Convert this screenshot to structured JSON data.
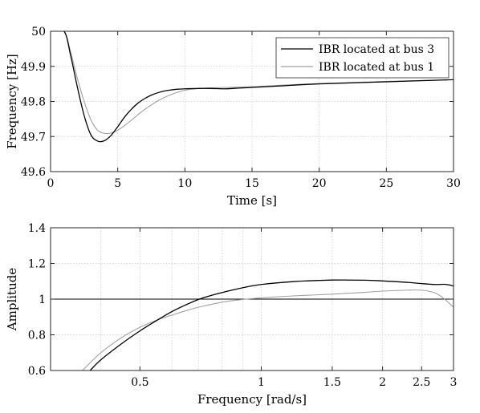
{
  "chart_data": [
    {
      "type": "line",
      "title": "",
      "xlabel": "Time [s]",
      "ylabel": "Frequency [Hz]",
      "xlim": [
        0,
        30
      ],
      "ylim": [
        49.6,
        50
      ],
      "xticks": [
        0,
        5,
        10,
        15,
        20,
        25,
        30
      ],
      "yticks": [
        49.6,
        49.7,
        49.8,
        49.9,
        50
      ],
      "xtick_labels": [
        "0",
        "5",
        "10",
        "15",
        "20",
        "25",
        "30"
      ],
      "ytick_labels": [
        "49.6",
        "49.7",
        "49.8",
        "49.9",
        "50"
      ],
      "grid": true,
      "legend_position": "top-right",
      "series": [
        {
          "name": "IBR located at bus 3",
          "color": "#000000",
          "x": [
            0,
            1.0,
            1.5,
            2.0,
            2.5,
            3.0,
            3.5,
            4.0,
            4.5,
            5.0,
            5.5,
            6.0,
            6.5,
            7.0,
            7.5,
            8.0,
            8.5,
            9.0,
            9.5,
            10.0,
            11,
            12,
            13,
            14,
            15,
            17,
            20,
            25,
            30
          ],
          "y": [
            50.0,
            50.0,
            49.93,
            49.84,
            49.76,
            49.705,
            49.687,
            49.688,
            49.703,
            49.728,
            49.755,
            49.777,
            49.795,
            49.808,
            49.818,
            49.825,
            49.83,
            49.833,
            49.835,
            49.836,
            49.837,
            49.837,
            49.836,
            49.838,
            49.84,
            49.844,
            49.85,
            49.856,
            49.862
          ]
        },
        {
          "name": "IBR located at bus 1",
          "color": "#a0a0a0",
          "x": [
            0,
            1.0,
            1.5,
            2.0,
            2.5,
            3.0,
            3.5,
            4.0,
            4.5,
            5.0,
            5.5,
            6.0,
            6.5,
            7.0,
            8.0,
            9.0,
            10.0,
            11,
            12,
            13,
            14,
            15,
            17,
            20,
            25,
            30
          ],
          "y": [
            50.0,
            50.0,
            49.94,
            49.865,
            49.8,
            49.748,
            49.718,
            49.709,
            49.71,
            49.718,
            49.731,
            49.746,
            49.762,
            49.777,
            49.802,
            49.82,
            49.832,
            49.837,
            49.839,
            49.84,
            49.841,
            49.842,
            49.846,
            49.851,
            49.857,
            49.862
          ]
        }
      ]
    },
    {
      "type": "line",
      "title": "",
      "xlabel": "Frequency [rad/s]",
      "ylabel": "Amplitude",
      "xscale": "log",
      "xlim": [
        0.3,
        3
      ],
      "ylim": [
        0.6,
        1.4
      ],
      "xticks": [
        0.5,
        1,
        1.5,
        2,
        2.5,
        3
      ],
      "yticks": [
        0.6,
        0.8,
        1,
        1.2,
        1.4
      ],
      "xtick_labels": [
        "0.5",
        "1",
        "1.5",
        "2",
        "2.5",
        "3"
      ],
      "ytick_labels": [
        "0.6",
        "0.8",
        "1",
        "1.2",
        "1.4"
      ],
      "grid": true,
      "reference_line": 1,
      "series": [
        {
          "color": "#000000",
          "x": [
            0.376,
            0.4,
            0.45,
            0.5,
            0.55,
            0.6,
            0.65,
            0.7,
            0.75,
            0.8,
            0.9,
            1.0,
            1.2,
            1.5,
            1.8,
            2.0,
            2.3,
            2.5,
            2.7,
            2.85,
            2.95,
            3.0
          ],
          "y": [
            0.6,
            0.66,
            0.75,
            0.822,
            0.88,
            0.93,
            0.968,
            0.999,
            1.02,
            1.037,
            1.064,
            1.082,
            1.098,
            1.107,
            1.106,
            1.102,
            1.094,
            1.087,
            1.082,
            1.083,
            1.078,
            1.072
          ]
        },
        {
          "color": "#a0a0a0",
          "x": [
            0.36,
            0.4,
            0.45,
            0.5,
            0.55,
            0.6,
            0.65,
            0.7,
            0.8,
            0.9,
            1.0,
            1.2,
            1.5,
            1.8,
            2.0,
            2.3,
            2.5,
            2.7,
            2.85,
            3.0
          ],
          "y": [
            0.6,
            0.7,
            0.784,
            0.842,
            0.882,
            0.91,
            0.935,
            0.955,
            0.983,
            0.998,
            1.007,
            1.018,
            1.028,
            1.038,
            1.045,
            1.05,
            1.05,
            1.035,
            1.0,
            0.955
          ]
        }
      ]
    }
  ]
}
